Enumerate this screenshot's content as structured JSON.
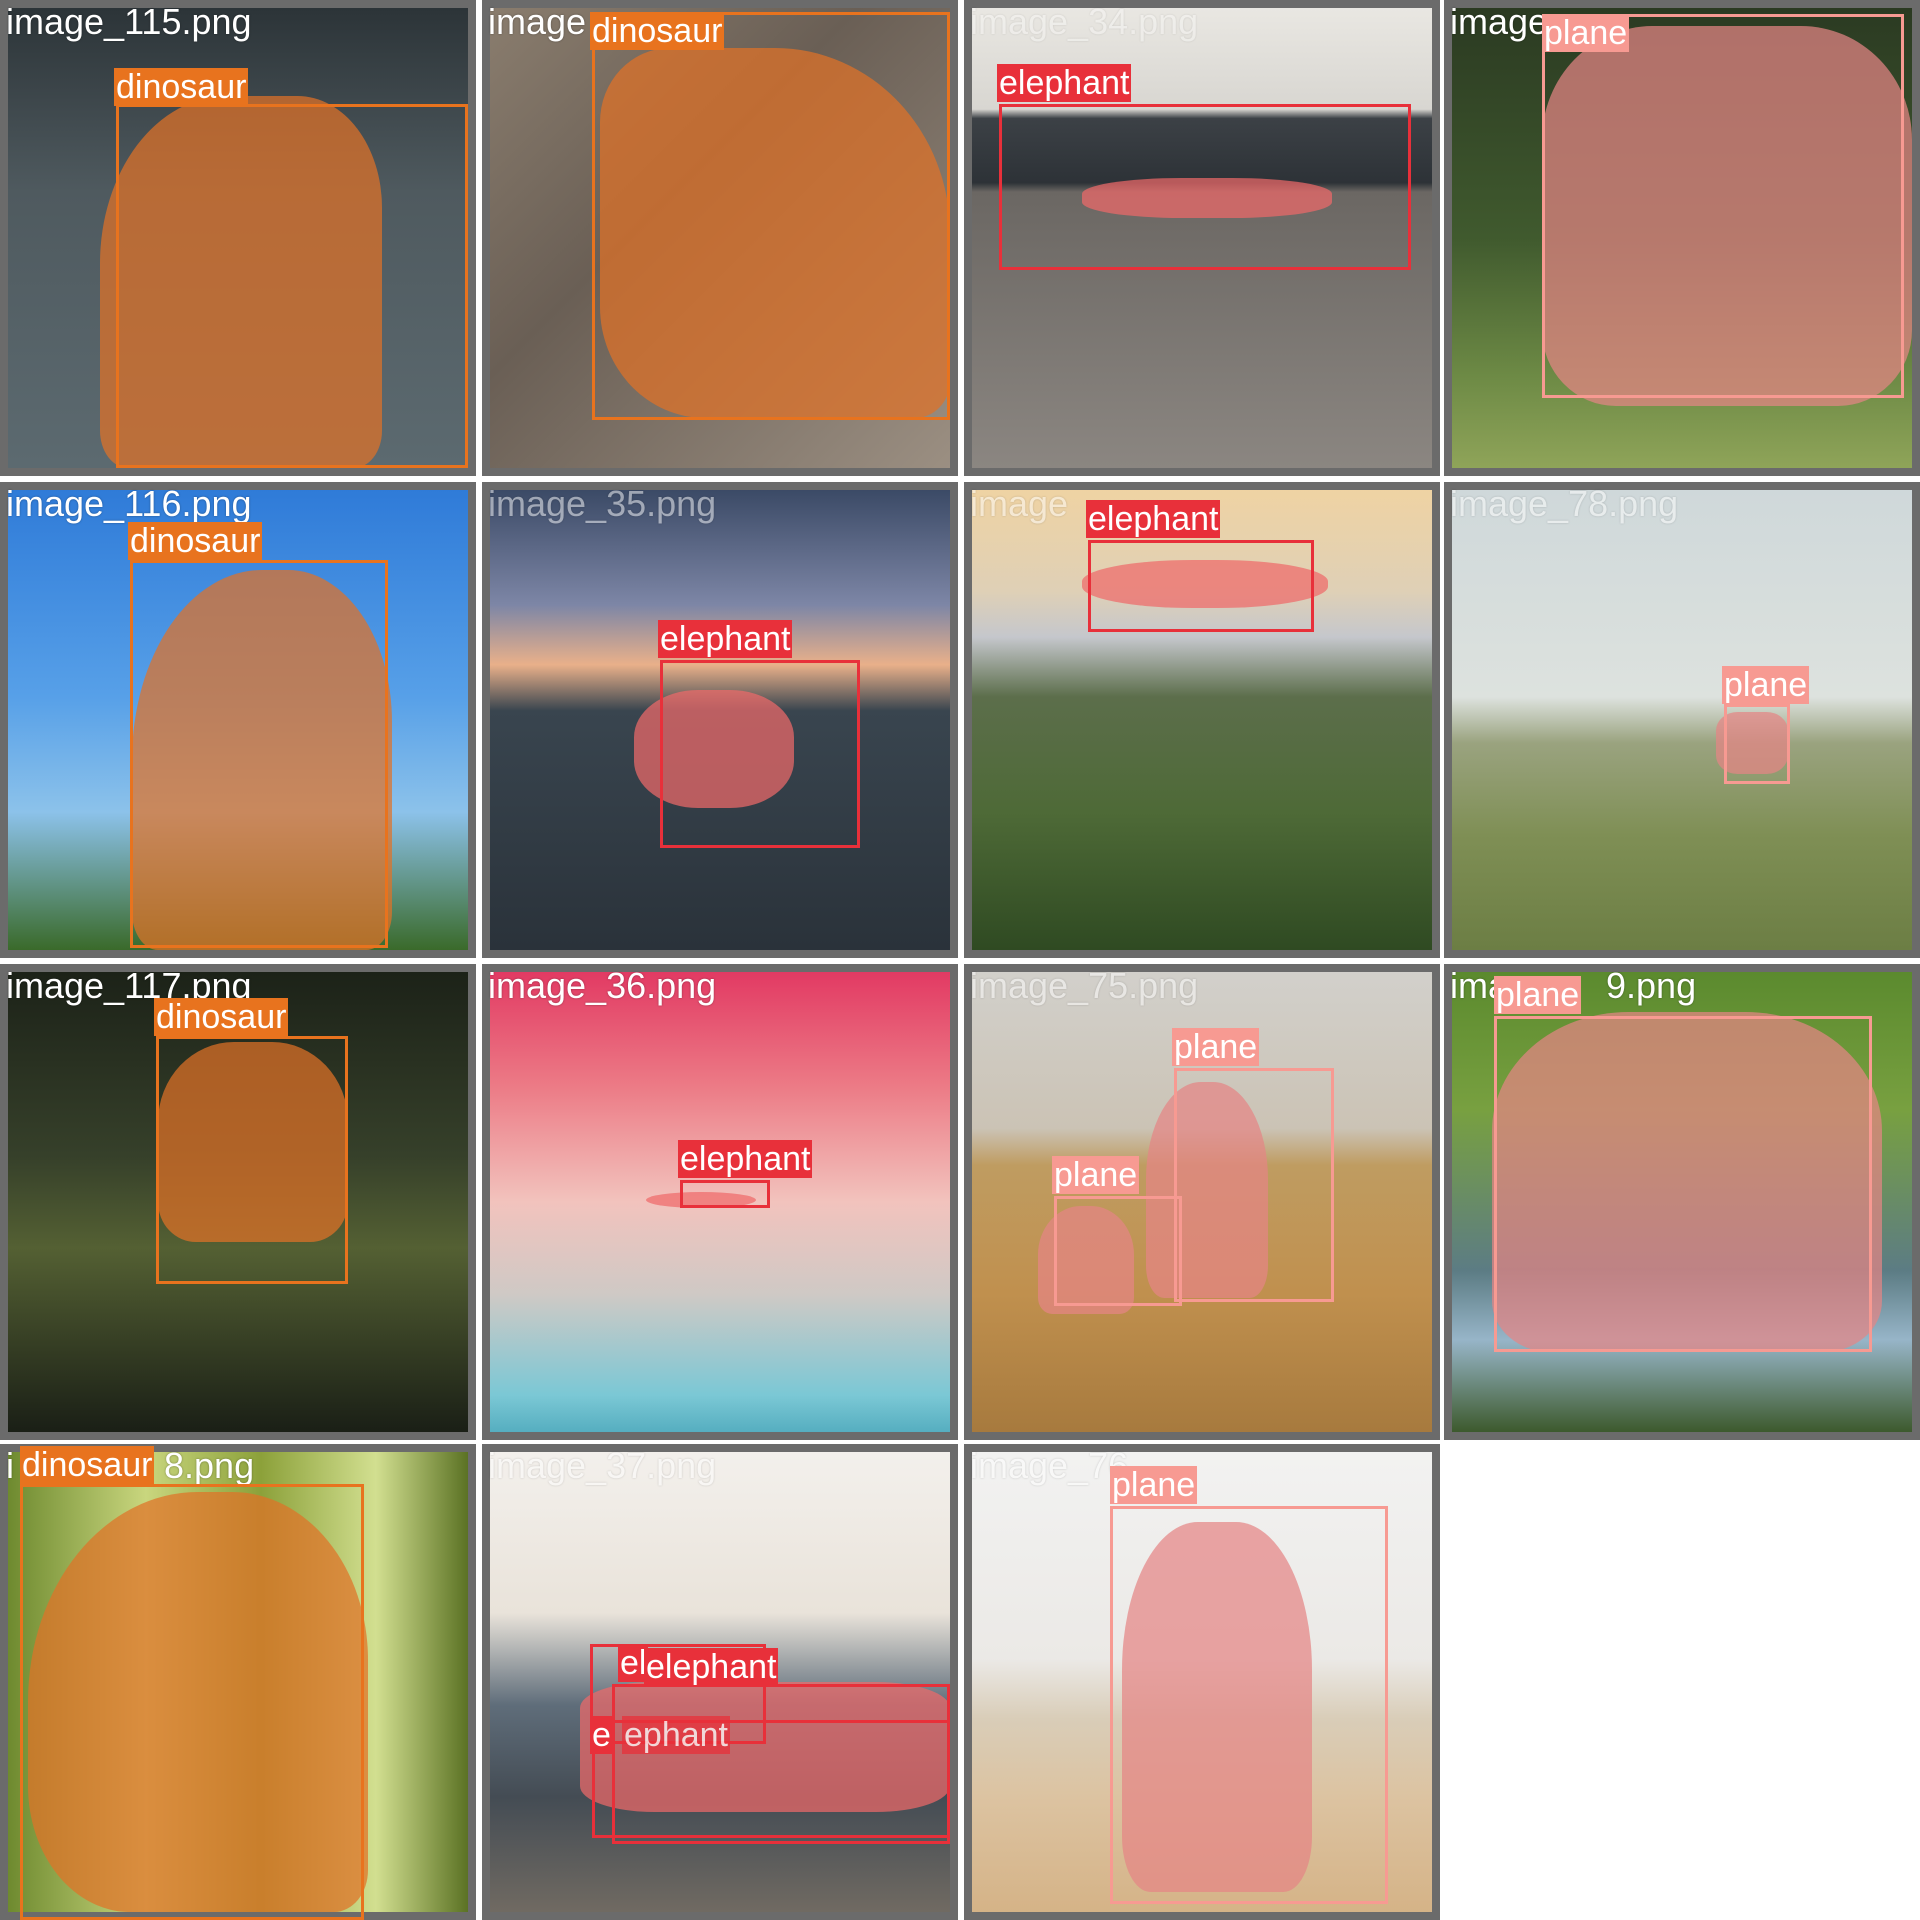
{
  "grid": {
    "tiles": [
      {
        "filename": "image_115.png",
        "detections": [
          {
            "label": "dinosaur"
          }
        ]
      },
      {
        "filename": "image",
        "detections": [
          {
            "label": "dinosaur"
          }
        ]
      },
      {
        "filename": "image_34.png",
        "detections": [
          {
            "label": "elephant"
          }
        ]
      },
      {
        "filename": "image",
        "detections": [
          {
            "label": "plane"
          }
        ]
      },
      {
        "filename": "image_116.png",
        "detections": [
          {
            "label": "dinosaur"
          }
        ]
      },
      {
        "filename": "image_35.png",
        "detections": [
          {
            "label": "elephant"
          }
        ]
      },
      {
        "filename": "image",
        "detections": [
          {
            "label": "elephant"
          }
        ]
      },
      {
        "filename": "image_78.png",
        "detections": [
          {
            "label": "plane"
          }
        ]
      },
      {
        "filename": "image_117.png",
        "detections": [
          {
            "label": "dinosaur"
          }
        ]
      },
      {
        "filename": "image_36.png",
        "detections": [
          {
            "label": "elephant"
          }
        ]
      },
      {
        "filename": "image_75.png",
        "detections": [
          {
            "label": "plane"
          },
          {
            "label": "plane"
          }
        ]
      },
      {
        "filename": "ima",
        "filename_suffix": "9.png",
        "detections": [
          {
            "label": "plane"
          }
        ]
      },
      {
        "filename": "i",
        "filename_suffix": "8.png",
        "detections": [
          {
            "label": "dinosaur"
          }
        ]
      },
      {
        "filename": "image_37.png",
        "detections": [
          {
            "label": "el"
          },
          {
            "label": "elephant"
          },
          {
            "label": "e"
          },
          {
            "label": "ephant"
          }
        ]
      },
      {
        "filename": "image_76",
        "detections": [
          {
            "label": "plane"
          }
        ]
      }
    ]
  },
  "colors": {
    "dinosaur": "#e8731e",
    "elephant": "#e8303a",
    "plane": "#f79a92",
    "tile_border": "#6b6b6b"
  }
}
